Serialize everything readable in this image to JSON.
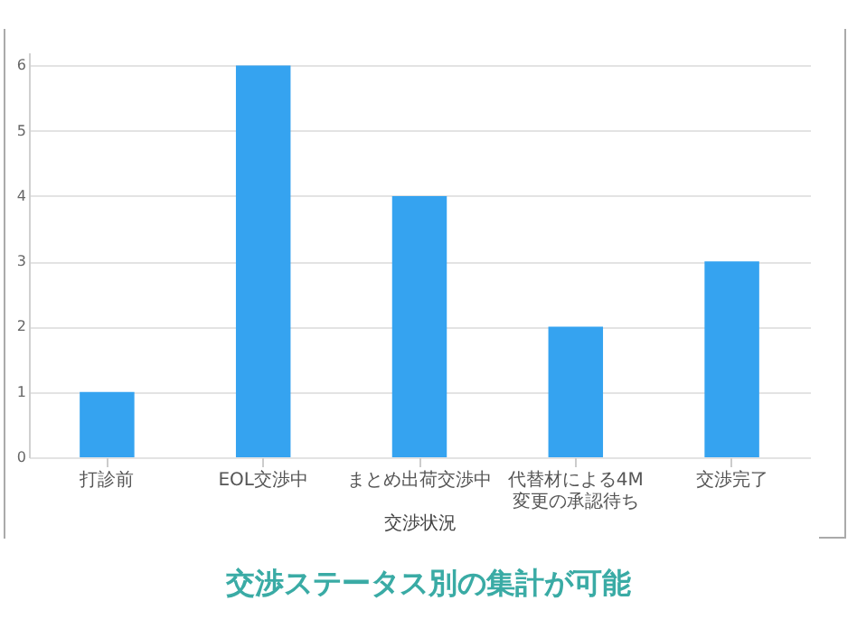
{
  "chart_data": {
    "type": "bar",
    "xlabel": "交渉状況",
    "categories": [
      "打診前",
      "EOL交渉中",
      "まとめ出荷交渉中",
      "代替材による4M変更の承認待ち",
      "交渉完了"
    ],
    "values": [
      1,
      6,
      4,
      2,
      3
    ],
    "color": "#35a3f0",
    "ylim": [
      0,
      6.2
    ],
    "yticks": [
      0,
      1,
      2,
      3,
      4,
      5,
      6
    ],
    "grid": "y",
    "annotations": [
      "交渉ステータス別の集計が可能"
    ]
  }
}
